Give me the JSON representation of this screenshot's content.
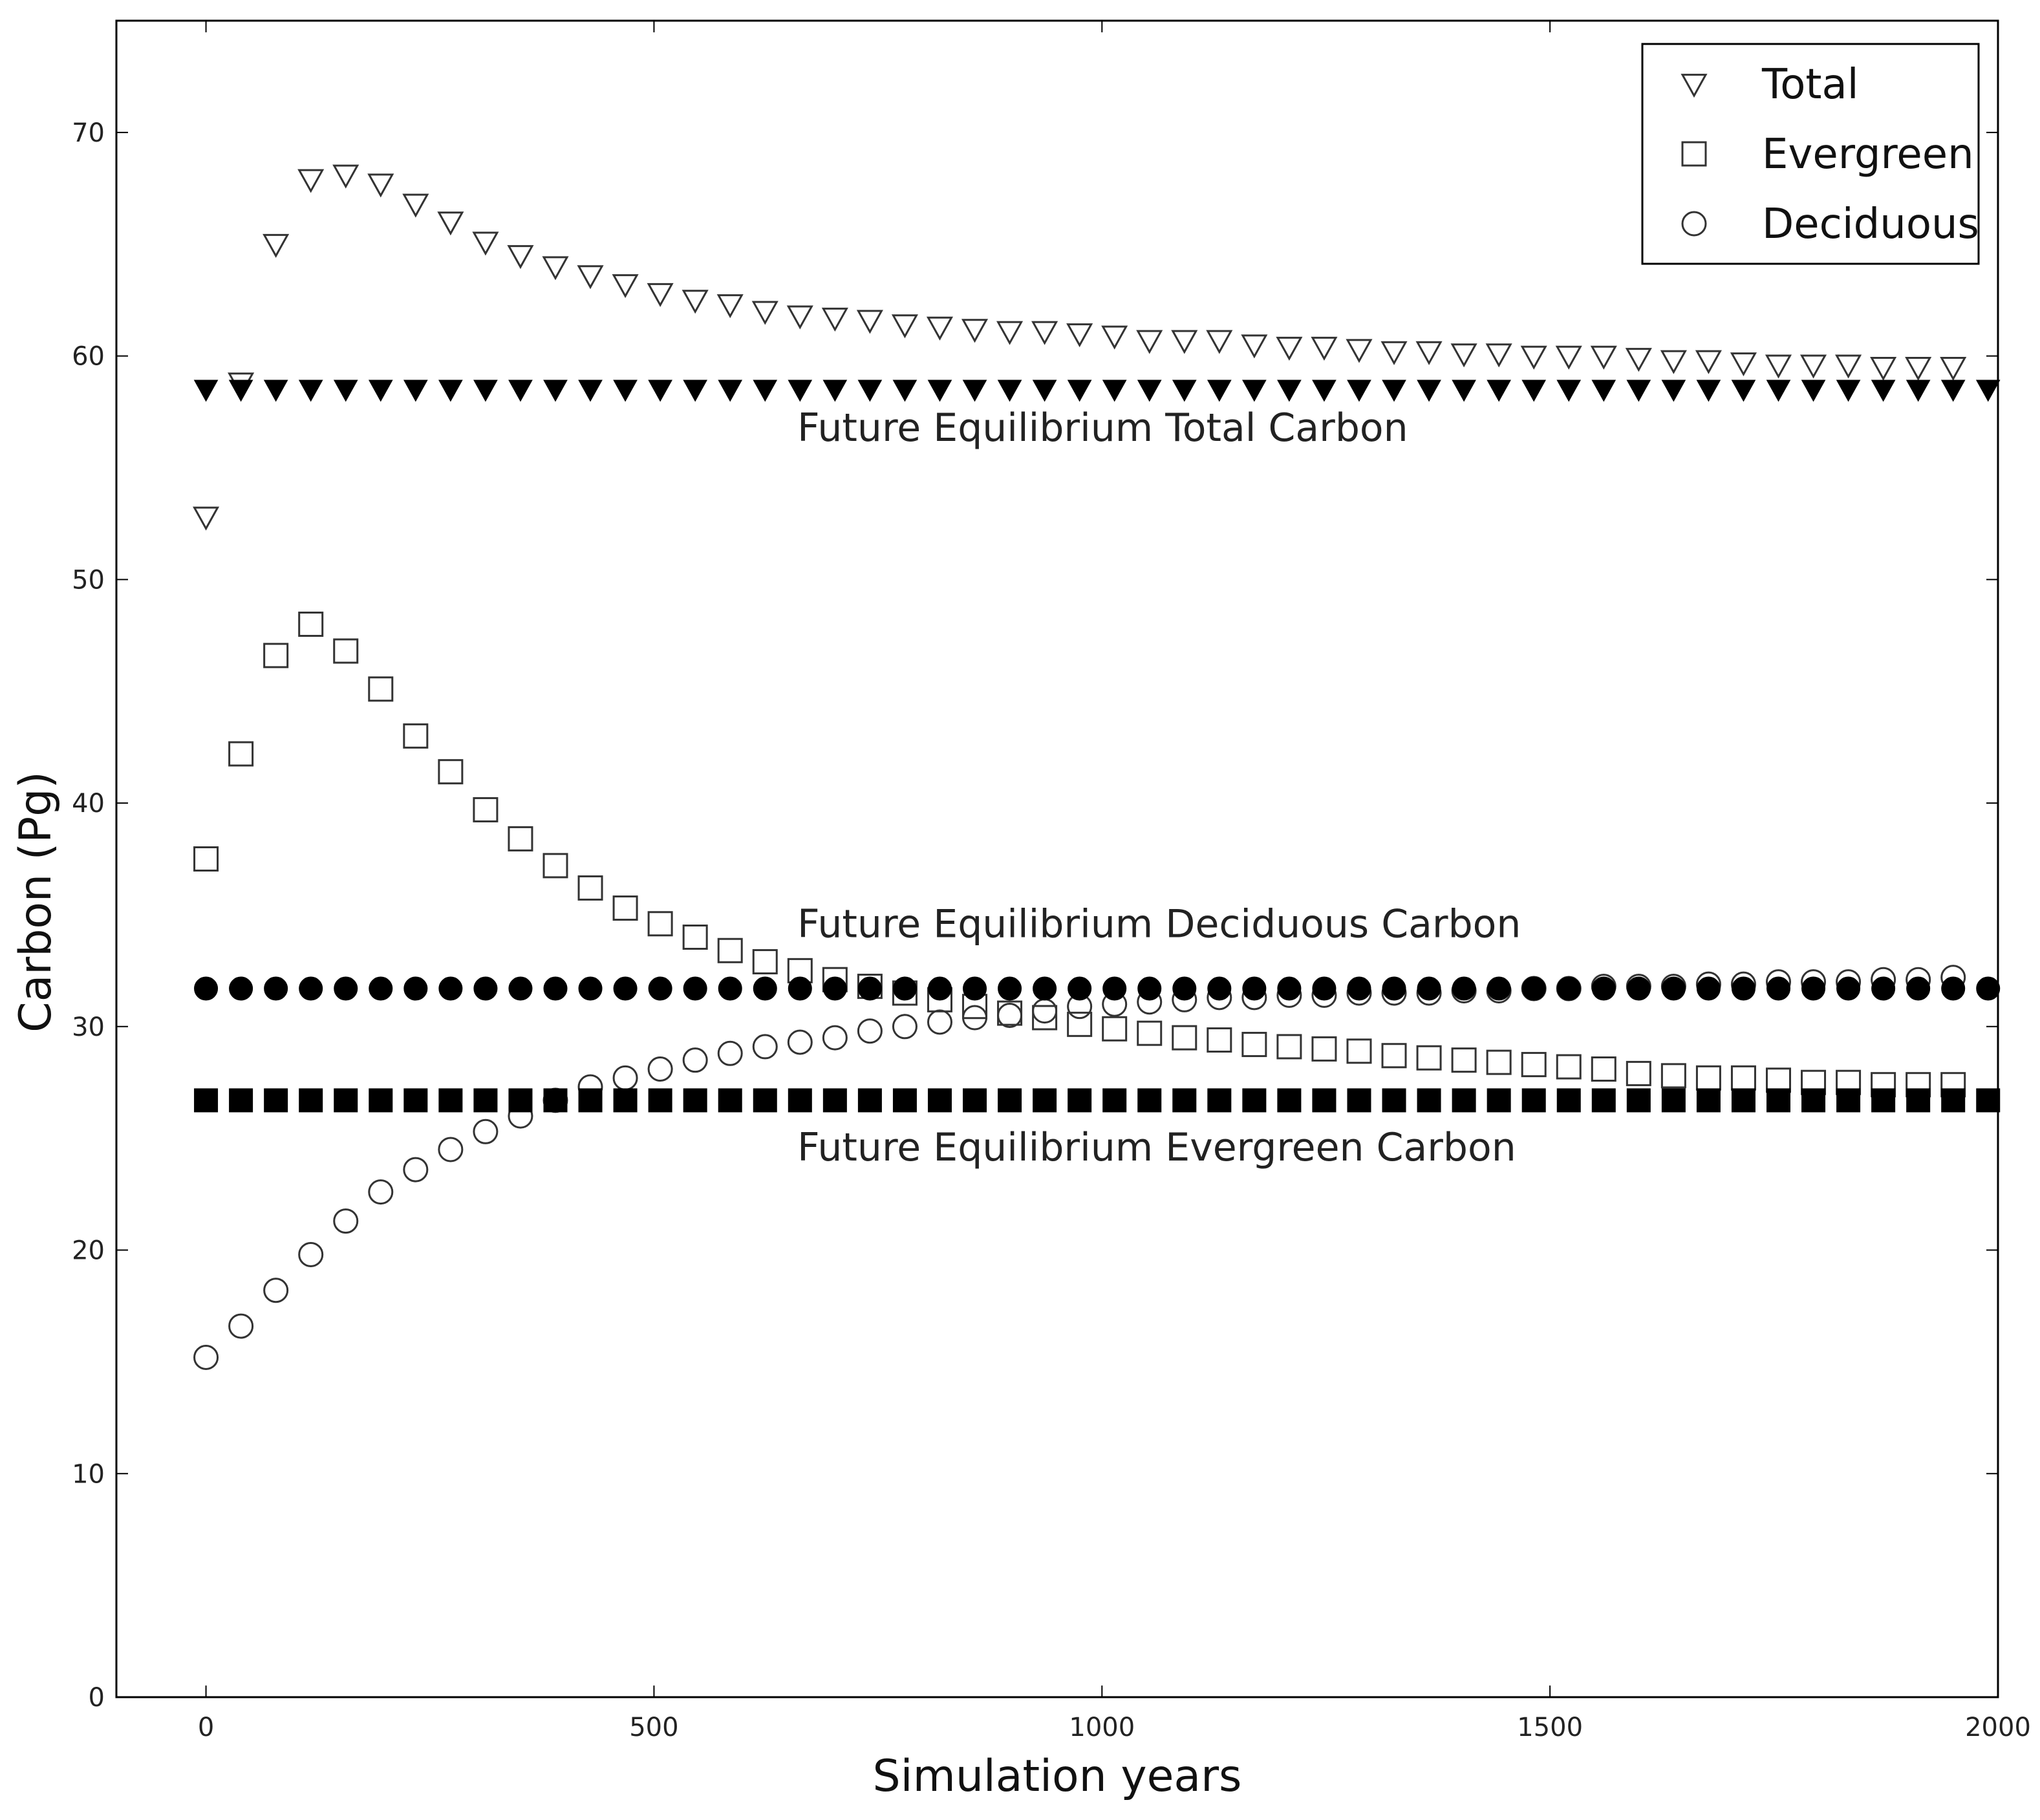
{
  "chart_data": {
    "type": "scatter",
    "title": "",
    "xlabel": "Simulation years",
    "ylabel": "Carbon (Pg)",
    "xlim": [
      -100,
      2000
    ],
    "ylim": [
      0,
      75
    ],
    "xticks": [
      0,
      500,
      1000,
      1500,
      2000
    ],
    "yticks": [
      0,
      10,
      20,
      30,
      40,
      50,
      60,
      70
    ],
    "grid": false,
    "legend_placement": "top-right",
    "series": [
      {
        "name": "Total",
        "marker": "triangle-down-open",
        "color": "#333333",
        "x": [
          0,
          39,
          78,
          117,
          156,
          195,
          234,
          273,
          312,
          351,
          390,
          429,
          468,
          507,
          546,
          585,
          624,
          663,
          702,
          741,
          780,
          819,
          858,
          897,
          936,
          975,
          1014,
          1053,
          1092,
          1131,
          1170,
          1209,
          1248,
          1287,
          1326,
          1365,
          1404,
          1443,
          1482,
          1521,
          1560,
          1599,
          1638,
          1677,
          1716,
          1755,
          1794,
          1833,
          1872,
          1911,
          1950
        ],
        "y": [
          52.8,
          58.8,
          65.0,
          67.9,
          68.1,
          67.7,
          66.8,
          66.0,
          65.1,
          64.5,
          64.0,
          63.6,
          63.2,
          62.8,
          62.5,
          62.3,
          62.0,
          61.8,
          61.7,
          61.6,
          61.4,
          61.3,
          61.2,
          61.1,
          61.1,
          61.0,
          60.9,
          60.7,
          60.7,
          60.7,
          60.5,
          60.4,
          60.4,
          60.3,
          60.2,
          60.2,
          60.1,
          60.1,
          60.0,
          60.0,
          60.0,
          59.9,
          59.8,
          59.8,
          59.7,
          59.6,
          59.6,
          59.6,
          59.5,
          59.5,
          59.5
        ]
      },
      {
        "name": "Evergreen",
        "marker": "square-open",
        "color": "#333333",
        "x": [
          0,
          39,
          78,
          117,
          156,
          195,
          234,
          273,
          312,
          351,
          390,
          429,
          468,
          507,
          546,
          585,
          624,
          663,
          702,
          741,
          780,
          819,
          858,
          897,
          936,
          975,
          1014,
          1053,
          1092,
          1131,
          1170,
          1209,
          1248,
          1287,
          1326,
          1365,
          1404,
          1443,
          1482,
          1521,
          1560,
          1599,
          1638,
          1677,
          1716,
          1755,
          1794,
          1833,
          1872,
          1911,
          1950
        ],
        "y": [
          37.5,
          42.2,
          46.6,
          48.0,
          46.8,
          45.1,
          43.0,
          41.4,
          39.7,
          38.4,
          37.2,
          36.2,
          35.3,
          34.6,
          34.0,
          33.4,
          32.9,
          32.5,
          32.1,
          31.8,
          31.5,
          31.2,
          30.9,
          30.6,
          30.4,
          30.1,
          29.9,
          29.7,
          29.5,
          29.4,
          29.2,
          29.1,
          29.0,
          28.9,
          28.7,
          28.6,
          28.5,
          28.4,
          28.3,
          28.2,
          28.1,
          27.9,
          27.8,
          27.7,
          27.7,
          27.6,
          27.5,
          27.5,
          27.4,
          27.4,
          27.4
        ]
      },
      {
        "name": "Deciduous",
        "marker": "circle-open",
        "color": "#333333",
        "x": [
          0,
          39,
          78,
          117,
          156,
          195,
          234,
          273,
          312,
          351,
          390,
          429,
          468,
          507,
          546,
          585,
          624,
          663,
          702,
          741,
          780,
          819,
          858,
          897,
          936,
          975,
          1014,
          1053,
          1092,
          1131,
          1170,
          1209,
          1248,
          1287,
          1326,
          1365,
          1404,
          1443,
          1482,
          1521,
          1560,
          1599,
          1638,
          1677,
          1716,
          1755,
          1794,
          1833,
          1872,
          1911,
          1950
        ],
        "y": [
          15.2,
          16.6,
          18.2,
          19.8,
          21.3,
          22.6,
          23.6,
          24.5,
          25.3,
          26.0,
          26.7,
          27.3,
          27.7,
          28.1,
          28.5,
          28.8,
          29.1,
          29.3,
          29.5,
          29.8,
          30.0,
          30.2,
          30.4,
          30.5,
          30.7,
          30.9,
          31.0,
          31.1,
          31.2,
          31.3,
          31.3,
          31.4,
          31.4,
          31.5,
          31.5,
          31.5,
          31.6,
          31.6,
          31.7,
          31.7,
          31.8,
          31.8,
          31.8,
          31.9,
          31.9,
          32.0,
          32.0,
          32.0,
          32.1,
          32.1,
          32.2
        ]
      },
      {
        "name": "",
        "marker": "triangle-down-filled",
        "color": "#000000",
        "x": [
          0,
          39,
          78,
          117,
          156,
          195,
          234,
          273,
          312,
          351,
          390,
          429,
          468,
          507,
          546,
          585,
          624,
          663,
          702,
          741,
          780,
          819,
          858,
          897,
          936,
          975,
          1014,
          1053,
          1092,
          1131,
          1170,
          1209,
          1248,
          1287,
          1326,
          1365,
          1404,
          1443,
          1482,
          1521,
          1560,
          1599,
          1638,
          1677,
          1716,
          1755,
          1794,
          1833,
          1872,
          1911,
          1950,
          1989
        ],
        "y": [
          58.5,
          58.5,
          58.5,
          58.5,
          58.5,
          58.5,
          58.5,
          58.5,
          58.5,
          58.5,
          58.5,
          58.5,
          58.5,
          58.5,
          58.5,
          58.5,
          58.5,
          58.5,
          58.5,
          58.5,
          58.5,
          58.5,
          58.5,
          58.5,
          58.5,
          58.5,
          58.5,
          58.5,
          58.5,
          58.5,
          58.5,
          58.5,
          58.5,
          58.5,
          58.5,
          58.5,
          58.5,
          58.5,
          58.5,
          58.5,
          58.5,
          58.5,
          58.5,
          58.5,
          58.5,
          58.5,
          58.5,
          58.5,
          58.5,
          58.5,
          58.5,
          58.5
        ]
      },
      {
        "name": "",
        "marker": "circle-filled",
        "color": "#000000",
        "x": [
          0,
          39,
          78,
          117,
          156,
          195,
          234,
          273,
          312,
          351,
          390,
          429,
          468,
          507,
          546,
          585,
          624,
          663,
          702,
          741,
          780,
          819,
          858,
          897,
          936,
          975,
          1014,
          1053,
          1092,
          1131,
          1170,
          1209,
          1248,
          1287,
          1326,
          1365,
          1404,
          1443,
          1482,
          1521,
          1560,
          1599,
          1638,
          1677,
          1716,
          1755,
          1794,
          1833,
          1872,
          1911,
          1950,
          1989
        ],
        "y": [
          31.7,
          31.7,
          31.7,
          31.7,
          31.7,
          31.7,
          31.7,
          31.7,
          31.7,
          31.7,
          31.7,
          31.7,
          31.7,
          31.7,
          31.7,
          31.7,
          31.7,
          31.7,
          31.7,
          31.7,
          31.7,
          31.7,
          31.7,
          31.7,
          31.7,
          31.7,
          31.7,
          31.7,
          31.7,
          31.7,
          31.7,
          31.7,
          31.7,
          31.7,
          31.7,
          31.7,
          31.7,
          31.7,
          31.7,
          31.7,
          31.7,
          31.7,
          31.7,
          31.7,
          31.7,
          31.7,
          31.7,
          31.7,
          31.7,
          31.7,
          31.7,
          31.7
        ]
      },
      {
        "name": "",
        "marker": "square-filled",
        "color": "#000000",
        "x": [
          0,
          39,
          78,
          117,
          156,
          195,
          234,
          273,
          312,
          351,
          390,
          429,
          468,
          507,
          546,
          585,
          624,
          663,
          702,
          741,
          780,
          819,
          858,
          897,
          936,
          975,
          1014,
          1053,
          1092,
          1131,
          1170,
          1209,
          1248,
          1287,
          1326,
          1365,
          1404,
          1443,
          1482,
          1521,
          1560,
          1599,
          1638,
          1677,
          1716,
          1755,
          1794,
          1833,
          1872,
          1911,
          1950,
          1989
        ],
        "y": [
          26.7,
          26.7,
          26.7,
          26.7,
          26.7,
          26.7,
          26.7,
          26.7,
          26.7,
          26.7,
          26.7,
          26.7,
          26.7,
          26.7,
          26.7,
          26.7,
          26.7,
          26.7,
          26.7,
          26.7,
          26.7,
          26.7,
          26.7,
          26.7,
          26.7,
          26.7,
          26.7,
          26.7,
          26.7,
          26.7,
          26.7,
          26.7,
          26.7,
          26.7,
          26.7,
          26.7,
          26.7,
          26.7,
          26.7,
          26.7,
          26.7,
          26.7,
          26.7,
          26.7,
          26.7,
          26.7,
          26.7,
          26.7,
          26.7,
          26.7,
          26.7,
          26.7
        ]
      }
    ],
    "legend": [
      "Total",
      "Evergreen",
      "Deciduous"
    ],
    "annotations": [
      {
        "text": "Future Equilibrium Total Carbon",
        "x": 660,
        "y": 56.2
      },
      {
        "text": "Future Equilibrium Deciduous Carbon",
        "x": 660,
        "y": 34.0
      },
      {
        "text": "Future Equilibrium Evergreen Carbon",
        "x": 660,
        "y": 24.0
      }
    ]
  }
}
